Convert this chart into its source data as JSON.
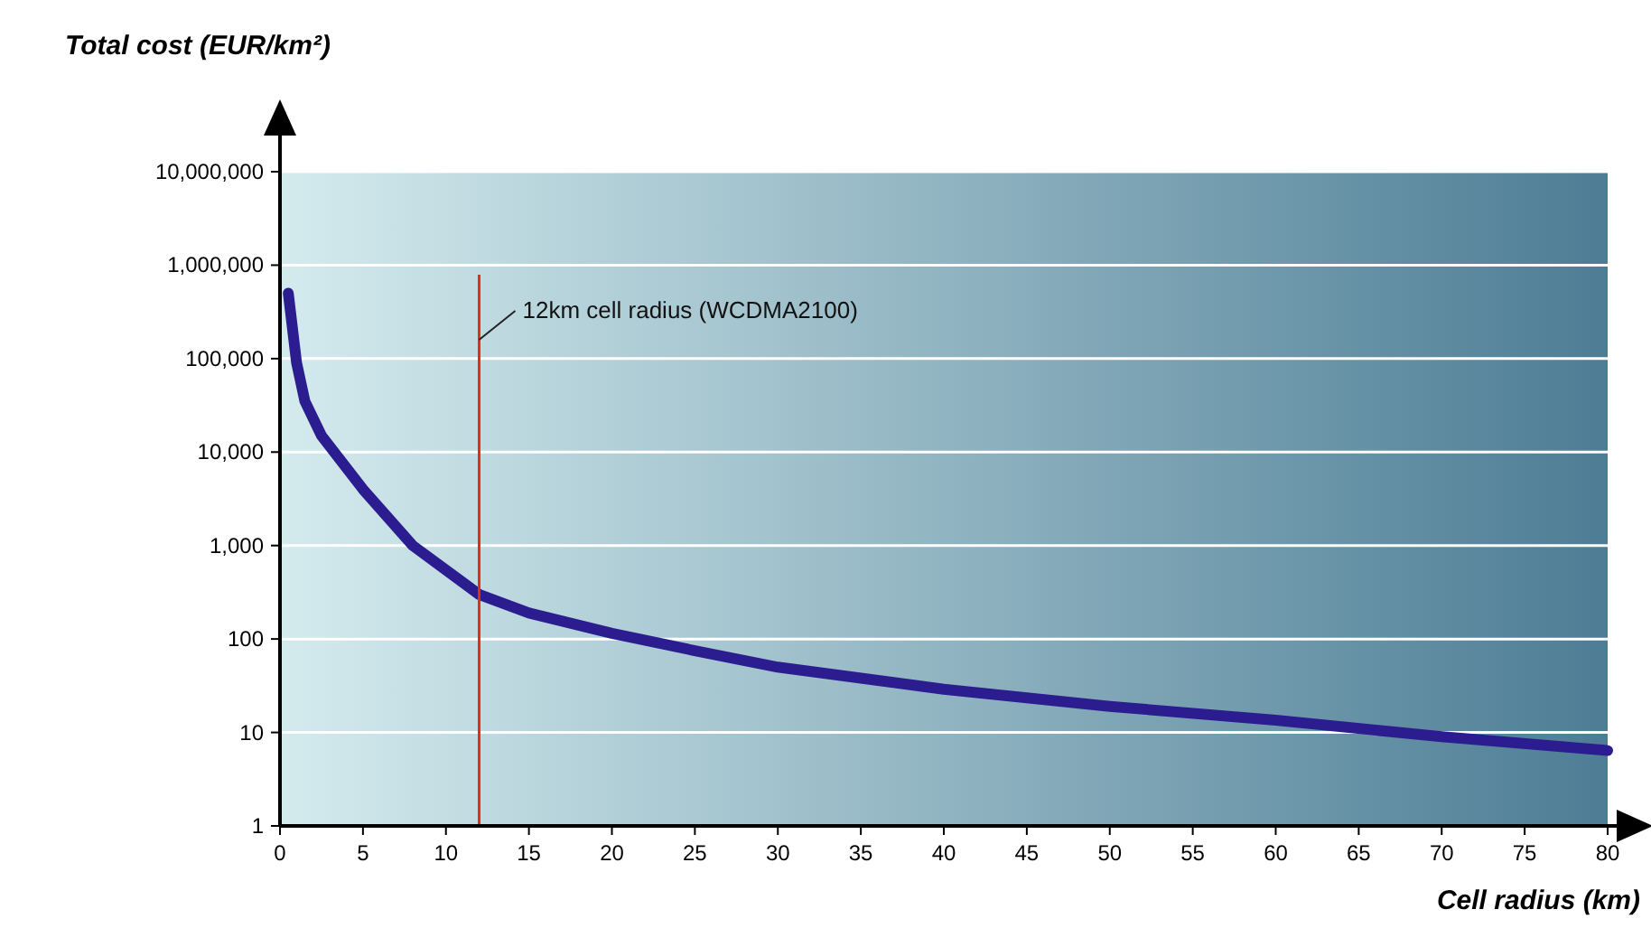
{
  "chart_data": {
    "type": "line",
    "ylabel": "Total cost (EUR/km²)",
    "xlabel": "Cell radius (km)",
    "x": [
      0.5,
      1,
      1.5,
      2.5,
      5,
      8,
      12,
      15,
      20,
      25,
      30,
      40,
      50,
      60,
      70,
      80
    ],
    "series": [
      {
        "color": "#2b1d8f",
        "values": [
          500000,
          90000,
          35000,
          15000,
          4000,
          1000,
          300,
          190,
          115,
          75,
          50,
          29,
          19,
          13.5,
          9,
          6.4
        ]
      }
    ],
    "xlim": [
      0,
      80
    ],
    "xticks": [
      0,
      5,
      10,
      15,
      20,
      25,
      30,
      35,
      40,
      45,
      50,
      55,
      60,
      65,
      70,
      75,
      80
    ],
    "ylim": [
      1,
      10000000
    ],
    "yticks": [
      1,
      10,
      100,
      {
        "value": 1000,
        "label": "1,000"
      },
      {
        "value": 10000,
        "label": "10,000"
      },
      {
        "value": 100000,
        "label": "100,000"
      },
      {
        "value": 1000000,
        "label": "1,000,000"
      },
      {
        "value": 10000000,
        "label": "10,000,000"
      }
    ],
    "log": "y",
    "grid": "y",
    "marker": "none",
    "line_style": "solid",
    "ref_lines": [
      {
        "axis": "x",
        "value": 12,
        "label": "12km cell radius (WCDMA2100)",
        "color": "#e03010"
      }
    ]
  }
}
